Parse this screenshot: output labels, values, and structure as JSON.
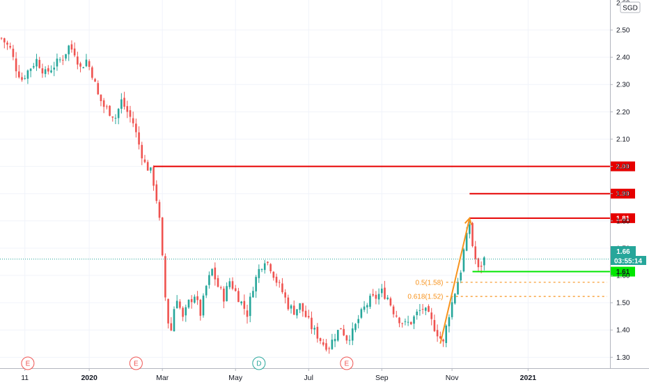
{
  "currency_badge": "SGD",
  "last_price_label": "1.66",
  "countdown": "03:55:14",
  "colors": {
    "up": "#26a69a",
    "down": "#ef5350",
    "resistance": "#e60000",
    "support": "#00e600",
    "fib": "#f7931e",
    "grid": "#f0f3fa",
    "axis_text": "#131722"
  },
  "chart_data": {
    "type": "candlestick",
    "ylim": [
      1.26,
      2.61
    ],
    "y_ticks": [
      "2.50",
      "2.40",
      "2.30",
      "2.20",
      "2.10",
      "2.00",
      "1.90",
      "1.80",
      "1.70",
      "1.60",
      "1.50",
      "1.40",
      "1.30"
    ],
    "x_ticks": [
      "11",
      "2020",
      "Mar",
      "May",
      "Jul",
      "Sep",
      "Nov",
      "2021"
    ],
    "close_path": [
      [
        0,
        2.47
      ],
      [
        3,
        2.43
      ],
      [
        5,
        2.36
      ],
      [
        7,
        2.32
      ],
      [
        9,
        2.35
      ],
      [
        12,
        2.39
      ],
      [
        15,
        2.34
      ],
      [
        18,
        2.37
      ],
      [
        21,
        2.4
      ],
      [
        23,
        2.44
      ],
      [
        25,
        2.42
      ],
      [
        27,
        2.36
      ],
      [
        29,
        2.39
      ],
      [
        31,
        2.34
      ],
      [
        33,
        2.26
      ],
      [
        35,
        2.22
      ],
      [
        37,
        2.2
      ],
      [
        39,
        2.18
      ],
      [
        41,
        2.24
      ],
      [
        43,
        2.2
      ],
      [
        45,
        2.16
      ],
      [
        47,
        2.08
      ],
      [
        49,
        2.01
      ],
      [
        51,
        1.98
      ],
      [
        52,
        1.94
      ],
      [
        53,
        1.88
      ],
      [
        54,
        1.8
      ],
      [
        55,
        1.66
      ],
      [
        56,
        1.52
      ],
      [
        57,
        1.43
      ],
      [
        58,
        1.4
      ],
      [
        59,
        1.48
      ],
      [
        60,
        1.52
      ],
      [
        62,
        1.44
      ],
      [
        64,
        1.5
      ],
      [
        66,
        1.53
      ],
      [
        68,
        1.46
      ],
      [
        70,
        1.56
      ],
      [
        72,
        1.62
      ],
      [
        74,
        1.56
      ],
      [
        76,
        1.52
      ],
      [
        78,
        1.58
      ],
      [
        80,
        1.54
      ],
      [
        82,
        1.5
      ],
      [
        84,
        1.46
      ],
      [
        86,
        1.56
      ],
      [
        88,
        1.62
      ],
      [
        90,
        1.66
      ],
      [
        92,
        1.63
      ],
      [
        94,
        1.58
      ],
      [
        96,
        1.54
      ],
      [
        98,
        1.49
      ],
      [
        100,
        1.47
      ],
      [
        102,
        1.49
      ],
      [
        104,
        1.45
      ],
      [
        106,
        1.41
      ],
      [
        108,
        1.38
      ],
      [
        110,
        1.35
      ],
      [
        112,
        1.34
      ],
      [
        114,
        1.38
      ],
      [
        116,
        1.41
      ],
      [
        118,
        1.37
      ],
      [
        120,
        1.39
      ],
      [
        122,
        1.44
      ],
      [
        124,
        1.48
      ],
      [
        126,
        1.51
      ],
      [
        128,
        1.52
      ],
      [
        130,
        1.54
      ],
      [
        132,
        1.52
      ],
      [
        134,
        1.47
      ],
      [
        136,
        1.44
      ],
      [
        138,
        1.42
      ],
      [
        140,
        1.43
      ],
      [
        142,
        1.46
      ],
      [
        144,
        1.48
      ],
      [
        146,
        1.45
      ],
      [
        148,
        1.41
      ],
      [
        150,
        1.37
      ],
      [
        151,
        1.35
      ],
      [
        152,
        1.41
      ],
      [
        153,
        1.46
      ],
      [
        155,
        1.54
      ],
      [
        157,
        1.62
      ],
      [
        158,
        1.69
      ],
      [
        159,
        1.74
      ],
      [
        160,
        1.79
      ],
      [
        161,
        1.71
      ],
      [
        162,
        1.66
      ],
      [
        163,
        1.62
      ],
      [
        164,
        1.64
      ],
      [
        165,
        1.66
      ]
    ],
    "horizontal_levels": [
      {
        "label": "2.00",
        "value": 2.0,
        "from": 52,
        "color": "resistance"
      },
      {
        "label": "1.90",
        "value": 1.9,
        "from": 160,
        "color": "resistance"
      },
      {
        "label": "1.81",
        "value": 1.81,
        "from": 160,
        "color": "resistance"
      },
      {
        "label": "1.61",
        "value": 1.614,
        "from": 161,
        "color": "support"
      }
    ],
    "fib_levels": [
      {
        "label": "0.5(1.58)",
        "value": 1.575
      },
      {
        "label": "0.618(1.52)",
        "value": 1.523
      }
    ],
    "trend_arrow": {
      "from": [
        150,
        1.35
      ],
      "to": [
        160,
        1.81
      ]
    },
    "events": [
      {
        "label": "E",
        "x": 9,
        "type": "earnings"
      },
      {
        "label": "E",
        "x": 46,
        "type": "earnings"
      },
      {
        "label": "D",
        "x": 88,
        "type": "dividend"
      },
      {
        "label": "E",
        "x": 118,
        "type": "earnings"
      }
    ]
  }
}
